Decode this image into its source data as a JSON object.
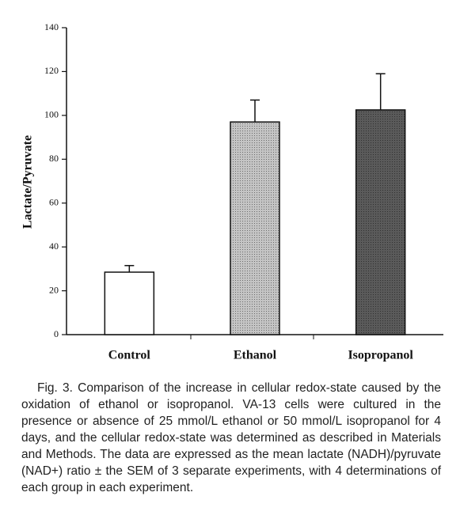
{
  "chart_data": {
    "type": "bar",
    "y_label": "Lactate/Pyruvate",
    "categories": [
      "Control",
      "Ethanol",
      "Isopropanol"
    ],
    "values": [
      28.5,
      97,
      102.5
    ],
    "errors": [
      3,
      10,
      16.5
    ],
    "colors": [
      "#ffffff",
      "#c4c4c4",
      "#5a5a5a"
    ],
    "ylim": [
      0,
      140
    ],
    "yticks": [
      0,
      20,
      40,
      60,
      80,
      100,
      120,
      140
    ],
    "caption": "Fig. 3.  Comparison of the increase in cellular redox-state caused by the oxidation of ethanol or isopropanol. VA-13 cells were cultured in the presence or absence of 25 mmol/L ethanol or 50 mmol/L isopropanol for 4 days, and the cellular redox-state was determined as described in Materials and Methods. The data are expressed as the mean lactate (NADH)/pyruvate (NAD+) ratio ± the SEM of 3 separate experiments, with 4 determinations of each group in each experiment."
  }
}
